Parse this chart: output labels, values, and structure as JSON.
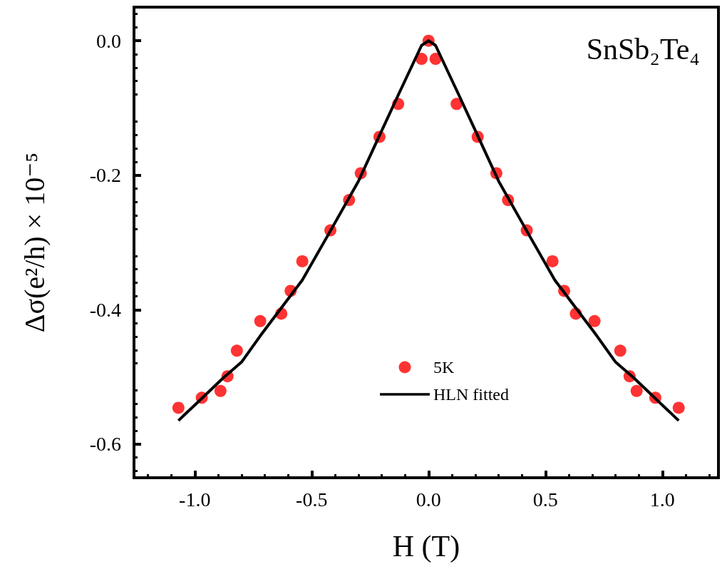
{
  "chart_data": {
    "type": "scatter",
    "xlabel": "H (T)",
    "ylabel": "Δσ(e²/h) × 10⁻⁵",
    "annotations": [
      "SnSb₂Te₄"
    ],
    "xlim": [
      -1.26,
      1.24
    ],
    "xticks": [
      {
        "value": -1,
        "label": "-1.0"
      },
      -0.5,
      {
        "value": 0,
        "label": "0.0"
      },
      0.5,
      {
        "value": 1,
        "label": "1.0"
      }
    ],
    "ylim": [
      -0.65,
      0.05
    ],
    "yticks": [
      {
        "value": -0.6,
        "label": "-0.6"
      },
      {
        "value": -0.4,
        "label": "-0.4"
      },
      {
        "value": -0.2,
        "label": "-0.2"
      },
      {
        "value": 0,
        "label": "0.0"
      }
    ],
    "grid": false,
    "legend": "bottom",
    "marker": "circle",
    "series": [
      {
        "name": "5K",
        "color": "#ff0000",
        "x": [
          -1.07,
          -0.97,
          -0.89,
          -0.86,
          -0.82,
          -0.72,
          -0.63,
          -0.59,
          -0.54,
          -0.42,
          -0.34,
          -0.29,
          -0.21,
          -0.13,
          -0.03,
          0,
          0.03,
          0.12,
          0.21,
          0.29,
          0.34,
          0.42,
          0.53,
          0.58,
          0.63,
          0.71,
          0.82,
          0.86,
          0.89,
          0.97,
          1.07
        ],
        "values": [
          -0.546,
          -0.531,
          -0.521,
          -0.499,
          -0.461,
          -0.417,
          -0.406,
          -0.372,
          -0.328,
          -0.282,
          -0.237,
          -0.197,
          -0.143,
          -0.094,
          -0.027,
          0,
          -0.027,
          -0.094,
          -0.143,
          -0.197,
          -0.237,
          -0.282,
          -0.328,
          -0.372,
          -0.406,
          -0.417,
          -0.461,
          -0.499,
          -0.521,
          -0.531,
          -0.546
        ]
      },
      {
        "name": "HLN fitted",
        "type": "line",
        "color": "#000000",
        "marker": "none",
        "line_style": "solid",
        "x": [
          -1.07,
          -0.97,
          -0.88,
          -0.8,
          -0.72,
          -0.54,
          -0.43,
          -0.3,
          -0.21,
          -0.13,
          -0.03,
          0,
          0.03,
          0.13,
          0.21,
          0.3,
          0.43,
          0.54,
          0.72,
          0.8,
          0.88,
          0.97,
          1.07
        ],
        "values": [
          -0.565,
          -0.532,
          -0.502,
          -0.478,
          -0.439,
          -0.356,
          -0.289,
          -0.209,
          -0.141,
          -0.081,
          -0.007,
          0,
          -0.007,
          -0.081,
          -0.141,
          -0.209,
          -0.289,
          -0.356,
          -0.439,
          -0.478,
          -0.502,
          -0.532,
          -0.565
        ]
      }
    ]
  }
}
